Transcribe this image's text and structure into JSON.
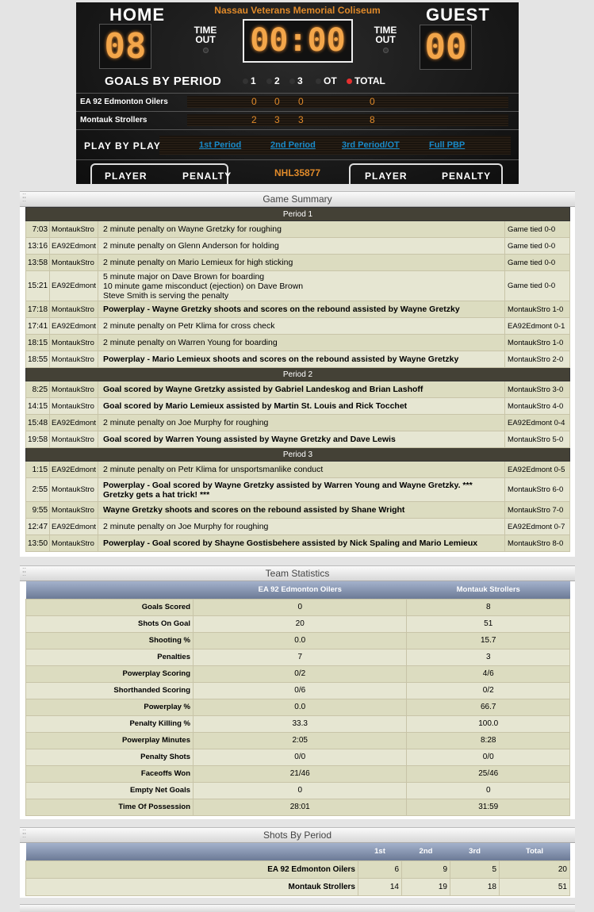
{
  "scoreboard": {
    "home_label": "HOME",
    "guest_label": "GUEST",
    "venue": "Nassau Veterans Memorial Coliseum",
    "home_score": "08",
    "guest_score": "00",
    "clock": "00:00",
    "timeout_label": "TIME\nOUT",
    "goals_by_period": "GOALS BY PERIOD",
    "periods": [
      "1",
      "2",
      "3",
      "OT",
      "TOTAL"
    ],
    "active_period": "TOTAL",
    "teams": [
      {
        "name": "EA 92 Edmonton Oilers",
        "p1": "0",
        "p2": "0",
        "p3": "0",
        "total": "0"
      },
      {
        "name": "Montauk Strollers",
        "p1": "2",
        "p2": "3",
        "p3": "3",
        "total": "8"
      }
    ],
    "play_by_play_label": "PLAY BY PLAY",
    "links": [
      "1st Period",
      "2nd Period",
      "3rd Period/OT",
      "Full PBP"
    ],
    "player_label": "PLAYER",
    "penalty_label": "PENALTY",
    "game_code": "NHL35877",
    "led_active_color": "#e53030",
    "digit_color": "#f3a64a"
  },
  "game_summary": {
    "title": "Game Summary",
    "periods": [
      {
        "label": "Period 1",
        "events": [
          {
            "time": "7:03",
            "team": "MontaukStro",
            "desc": "2 minute penalty on Wayne Gretzky for roughing",
            "score": "Game tied 0-0",
            "bold": false
          },
          {
            "time": "13:16",
            "team": "EA92Edmont",
            "desc": "2 minute penalty on Glenn Anderson for holding",
            "score": "Game tied 0-0",
            "bold": false
          },
          {
            "time": "13:58",
            "team": "MontaukStro",
            "desc": "2 minute penalty on Mario Lemieux for high sticking",
            "score": "Game tied 0-0",
            "bold": false
          },
          {
            "time": "15:21",
            "team": "EA92Edmont",
            "desc": "5 minute major on Dave Brown for boarding\n10 minute game misconduct (ejection) on Dave Brown\nSteve Smith is serving the penalty",
            "score": "Game tied 0-0",
            "bold": false
          },
          {
            "time": "17:18",
            "team": "MontaukStro",
            "desc": "Powerplay - Wayne Gretzky shoots and scores on the rebound assisted by Wayne Gretzky",
            "score": "MontaukStro 1-0",
            "bold": true
          },
          {
            "time": "17:41",
            "team": "EA92Edmont",
            "desc": "2 minute penalty on Petr Klima for cross check",
            "score": "EA92Edmont 0-1",
            "bold": false
          },
          {
            "time": "18:15",
            "team": "MontaukStro",
            "desc": "2 minute penalty on Warren Young for boarding",
            "score": "MontaukStro 1-0",
            "bold": false
          },
          {
            "time": "18:55",
            "team": "MontaukStro",
            "desc": "Powerplay - Mario Lemieux shoots and scores on the rebound assisted by Wayne Gretzky",
            "score": "MontaukStro 2-0",
            "bold": true
          }
        ]
      },
      {
        "label": "Period 2",
        "events": [
          {
            "time": "8:25",
            "team": "MontaukStro",
            "desc": "Goal scored by Wayne Gretzky assisted by Gabriel Landeskog and Brian Lashoff",
            "score": "MontaukStro 3-0",
            "bold": true
          },
          {
            "time": "14:15",
            "team": "MontaukStro",
            "desc": "Goal scored by Mario Lemieux assisted by Martin St. Louis and Rick Tocchet",
            "score": "MontaukStro 4-0",
            "bold": true
          },
          {
            "time": "15:48",
            "team": "EA92Edmont",
            "desc": "2 minute penalty on Joe Murphy for roughing",
            "score": "EA92Edmont 0-4",
            "bold": false
          },
          {
            "time": "19:58",
            "team": "MontaukStro",
            "desc": "Goal scored by Warren Young assisted by Wayne Gretzky and Dave Lewis",
            "score": "MontaukStro 5-0",
            "bold": true
          }
        ]
      },
      {
        "label": "Period 3",
        "events": [
          {
            "time": "1:15",
            "team": "EA92Edmont",
            "desc": "2 minute penalty on Petr Klima for unsportsmanlike conduct",
            "score": "EA92Edmont 0-5",
            "bold": false
          },
          {
            "time": "2:55",
            "team": "MontaukStro",
            "desc": "Powerplay - Goal scored by Wayne Gretzky assisted by Warren Young and Wayne Gretzky. *** Gretzky gets a hat trick! ***",
            "score": "MontaukStro 6-0",
            "bold": true
          },
          {
            "time": "9:55",
            "team": "MontaukStro",
            "desc": "Wayne Gretzky shoots and scores on the rebound assisted by Shane Wright",
            "score": "MontaukStro 7-0",
            "bold": true
          },
          {
            "time": "12:47",
            "team": "EA92Edmont",
            "desc": "2 minute penalty on Joe Murphy for roughing",
            "score": "EA92Edmont 0-7",
            "bold": false
          },
          {
            "time": "13:50",
            "team": "MontaukStro",
            "desc": "Powerplay - Goal scored by Shayne Gostisbehere assisted by Nick Spaling and Mario Lemieux",
            "score": "MontaukStro 8-0",
            "bold": true
          }
        ]
      }
    ]
  },
  "team_statistics": {
    "title": "Team Statistics",
    "columns": [
      "EA 92 Edmonton Oilers",
      "Montauk Strollers"
    ],
    "rows": [
      [
        "Goals Scored",
        "0",
        "8"
      ],
      [
        "Shots On Goal",
        "20",
        "51"
      ],
      [
        "Shooting %",
        "0.0",
        "15.7"
      ],
      [
        "Penalties",
        "7",
        "3"
      ],
      [
        "Powerplay Scoring",
        "0/2",
        "4/6"
      ],
      [
        "Shorthanded Scoring",
        "0/6",
        "0/2"
      ],
      [
        "Powerplay %",
        "0.0",
        "66.7"
      ],
      [
        "Penalty Killing %",
        "33.3",
        "100.0"
      ],
      [
        "Powerplay Minutes",
        "2:05",
        "8:28"
      ],
      [
        "Penalty Shots",
        "0/0",
        "0/0"
      ],
      [
        "Faceoffs Won",
        "21/46",
        "25/46"
      ],
      [
        "Empty Net Goals",
        "0",
        "0"
      ],
      [
        "Time Of Possession",
        "28:01",
        "31:59"
      ]
    ]
  },
  "shots_by_period": {
    "title": "Shots By Period",
    "columns": [
      "1st",
      "2nd",
      "3rd",
      "Total"
    ],
    "rows": [
      [
        "EA 92 Edmonton Oilers",
        "6",
        "9",
        "5",
        "20"
      ],
      [
        "Montauk Strollers",
        "14",
        "19",
        "18",
        "51"
      ]
    ]
  }
}
